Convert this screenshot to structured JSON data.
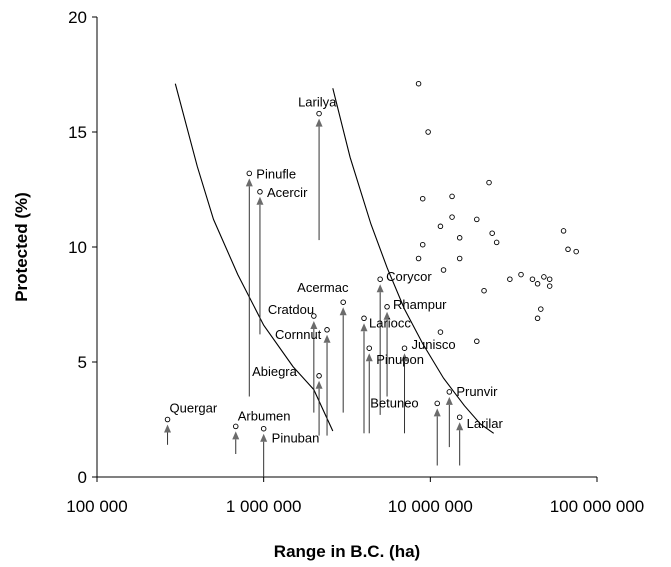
{
  "chart_data": {
    "type": "scatter",
    "title": "",
    "xlabel": "Range in B.C. (ha)",
    "ylabel": "Protected (%)",
    "x_scale": "log",
    "xlim": [
      100000,
      100000000
    ],
    "ylim": [
      0,
      20
    ],
    "x_ticks": [
      100000,
      1000000,
      10000000,
      100000000
    ],
    "x_tick_labels": [
      "100 000",
      "1 000 000",
      "10 000 000",
      "100 000 000"
    ],
    "y_ticks": [
      0,
      5,
      10,
      15,
      20
    ],
    "y_tick_labels": [
      "0",
      "5",
      "10",
      "15",
      "20"
    ],
    "grid": false,
    "colors": {
      "points": "#000000",
      "arrows": "#6b6b6b",
      "curves": "#000000"
    },
    "unlabeled_points": [
      {
        "x": 8500000,
        "y": 17.1
      },
      {
        "x": 9700000,
        "y": 15.0
      },
      {
        "x": 22500000,
        "y": 12.8
      },
      {
        "x": 13500000,
        "y": 12.2
      },
      {
        "x": 9000000,
        "y": 12.1
      },
      {
        "x": 13500000,
        "y": 11.3
      },
      {
        "x": 11500000,
        "y": 10.9
      },
      {
        "x": 19000000,
        "y": 11.2
      },
      {
        "x": 23500000,
        "y": 10.6
      },
      {
        "x": 25000000,
        "y": 10.2
      },
      {
        "x": 15000000,
        "y": 10.4
      },
      {
        "x": 9000000,
        "y": 10.1
      },
      {
        "x": 8500000,
        "y": 9.5
      },
      {
        "x": 15000000,
        "y": 9.5
      },
      {
        "x": 12000000,
        "y": 9.0
      },
      {
        "x": 63000000,
        "y": 10.7
      },
      {
        "x": 67000000,
        "y": 9.9
      },
      {
        "x": 75000000,
        "y": 9.8
      },
      {
        "x": 30000000,
        "y": 8.6
      },
      {
        "x": 35000000,
        "y": 8.8
      },
      {
        "x": 41000000,
        "y": 8.6
      },
      {
        "x": 44000000,
        "y": 8.4
      },
      {
        "x": 48000000,
        "y": 8.7
      },
      {
        "x": 52000000,
        "y": 8.6
      },
      {
        "x": 52000000,
        "y": 8.3
      },
      {
        "x": 21000000,
        "y": 8.1
      },
      {
        "x": 46000000,
        "y": 7.3
      },
      {
        "x": 44000000,
        "y": 6.9
      },
      {
        "x": 11500000,
        "y": 6.3
      },
      {
        "x": 19000000,
        "y": 5.9
      }
    ],
    "labeled_points": [
      {
        "name": "Larilya",
        "x": 2150000,
        "y": 15.8,
        "arrow_from": 10.3
      },
      {
        "name": "Pinufle",
        "x": 820000,
        "y": 13.2,
        "arrow_from": 3.5
      },
      {
        "name": "Acercir",
        "x": 950000,
        "y": 12.4,
        "arrow_from": 6.2
      },
      {
        "name": "Corycor",
        "x": 5000000,
        "y": 8.6,
        "arrow_from": 2.7
      },
      {
        "name": "Acermac",
        "x": 3000000,
        "y": 7.6,
        "arrow_from": 2.8
      },
      {
        "name": "Rhampur",
        "x": 5500000,
        "y": 7.4,
        "arrow_from": 3.5
      },
      {
        "name": "Cratdou",
        "x": 2000000,
        "y": 7.0,
        "arrow_from": 2.8
      },
      {
        "name": "Lariocc",
        "x": 4000000,
        "y": 6.9,
        "arrow_from": 1.9
      },
      {
        "name": "Cornnut",
        "x": 2400000,
        "y": 6.4,
        "arrow_from": 1.8
      },
      {
        "name": "Junisco",
        "x": 7000000,
        "y": 5.6,
        "arrow_from": 1.9
      },
      {
        "name": "Pinupon",
        "x": 4300000,
        "y": 5.6,
        "arrow_from": 1.9
      },
      {
        "name": "Abiegra",
        "x": 2150000,
        "y": 4.4,
        "arrow_from": 1.8
      },
      {
        "name": "Prunvir",
        "x": 13000000,
        "y": 3.7,
        "arrow_from": 1.3
      },
      {
        "name": "Betuneo",
        "x": 11000000,
        "y": 3.2,
        "arrow_from": 0.5
      },
      {
        "name": "Larilar",
        "x": 15000000,
        "y": 2.6,
        "arrow_from": 0.5
      },
      {
        "name": "Quergar",
        "x": 265000,
        "y": 2.5,
        "arrow_from": 1.4
      },
      {
        "name": "Arbumen",
        "x": 680000,
        "y": 2.2,
        "arrow_from": 1.0
      },
      {
        "name": "Pinuban",
        "x": 1000000,
        "y": 2.1,
        "arrow_from": 0.0
      }
    ],
    "curves": [
      {
        "points": [
          [
            295000,
            17.1
          ],
          [
            400000,
            13.5
          ],
          [
            500000,
            11.2
          ],
          [
            700000,
            8.8
          ],
          [
            1000000,
            6.6
          ],
          [
            1500000,
            4.8
          ],
          [
            2000000,
            3.8
          ],
          [
            2600000,
            2.0
          ]
        ]
      },
      {
        "points": [
          [
            2600000,
            16.9
          ],
          [
            3300000,
            13.9
          ],
          [
            4400000,
            11.0
          ],
          [
            5500000,
            9.1
          ],
          [
            7000000,
            7.3
          ],
          [
            9000000,
            5.8
          ],
          [
            12000000,
            4.3
          ],
          [
            16000000,
            3.1
          ],
          [
            20000000,
            2.3
          ],
          [
            24000000,
            1.9
          ]
        ]
      }
    ]
  }
}
